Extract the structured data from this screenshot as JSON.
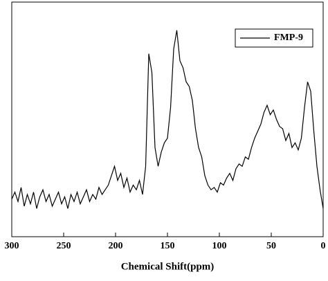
{
  "chart_data": {
    "type": "line",
    "xlabel": "Chemical Shift(ppm)",
    "x": [
      300,
      297,
      294,
      291,
      288,
      285,
      282,
      279,
      276,
      273,
      270,
      267,
      264,
      261,
      258,
      255,
      252,
      249,
      246,
      243,
      240,
      237,
      234,
      231,
      228,
      225,
      222,
      219,
      216,
      213,
      210,
      207,
      204,
      201,
      198,
      195,
      192,
      189,
      186,
      183,
      180,
      177,
      174,
      171,
      168,
      165,
      162,
      159,
      156,
      153,
      150,
      147,
      144,
      141,
      138,
      135,
      132,
      129,
      126,
      123,
      120,
      117,
      114,
      111,
      108,
      105,
      102,
      99,
      96,
      93,
      90,
      87,
      84,
      81,
      78,
      75,
      72,
      69,
      66,
      63,
      60,
      57,
      54,
      51,
      48,
      45,
      42,
      39,
      36,
      33,
      30,
      27,
      24,
      21,
      18,
      15,
      12,
      9,
      6,
      3,
      0
    ],
    "series": [
      {
        "name": "FMP-9",
        "color": "#000000",
        "values": [
          16,
          19,
          15,
          21,
          13,
          18,
          14,
          19,
          12,
          17,
          20,
          15,
          18,
          13,
          16,
          19,
          14,
          17,
          12,
          18,
          15,
          19,
          14,
          17,
          20,
          15,
          18,
          16,
          21,
          18,
          20,
          22,
          26,
          30,
          24,
          27,
          21,
          25,
          19,
          22,
          20,
          24,
          18,
          30,
          78,
          70,
          38,
          30,
          36,
          40,
          42,
          55,
          80,
          88,
          75,
          72,
          66,
          64,
          58,
          46,
          38,
          34,
          26,
          22,
          20,
          21,
          19,
          23,
          22,
          25,
          27,
          24,
          29,
          31,
          30,
          34,
          33,
          38,
          42,
          45,
          48,
          53,
          56,
          52,
          54,
          50,
          47,
          46,
          41,
          44,
          38,
          40,
          37,
          42,
          55,
          66,
          62,
          45,
          30,
          20,
          12
        ]
      }
    ],
    "xlim": [
      300,
      0
    ],
    "ylim": [
      0,
      100
    ],
    "xticks": [
      300,
      250,
      200,
      150,
      100,
      50,
      0
    ],
    "legend": "upper right"
  }
}
